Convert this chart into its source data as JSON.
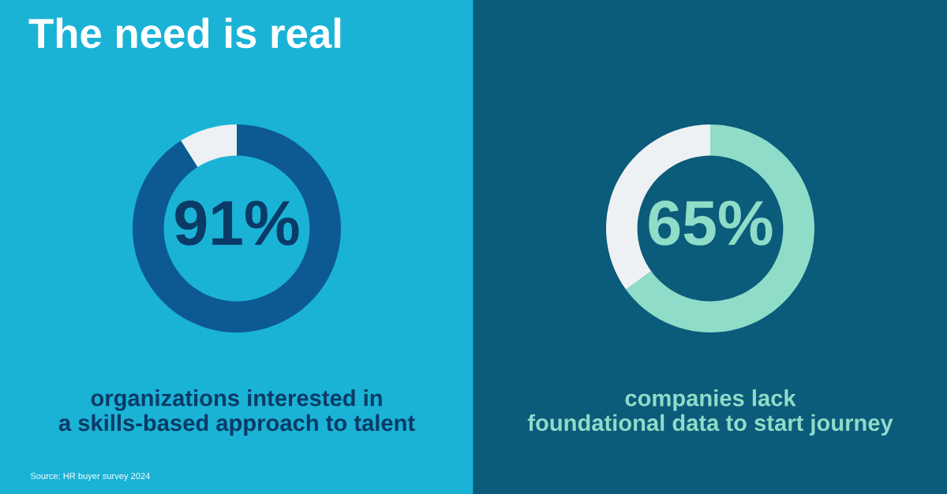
{
  "chart_data": [
    {
      "type": "donut",
      "title": "The need is real",
      "categories": [
        null,
        null
      ],
      "values": [
        91,
        9
      ],
      "colors": [
        "#0d5a92",
        "#eef1f3"
      ],
      "value_labels": [
        "91%",
        null
      ],
      "annotations": [
        "organizations interested in\na skills-based approach to talent",
        "Source: HR buyer survey 2024"
      ]
    },
    {
      "type": "donut",
      "categories": [
        null,
        null
      ],
      "values": [
        65,
        35
      ],
      "colors": [
        "#8fdcc8",
        "#eef1f3"
      ],
      "value_labels": [
        "65%",
        null
      ],
      "annotations": [
        "companies lack\nfoundational data to start journey"
      ]
    }
  ]
}
